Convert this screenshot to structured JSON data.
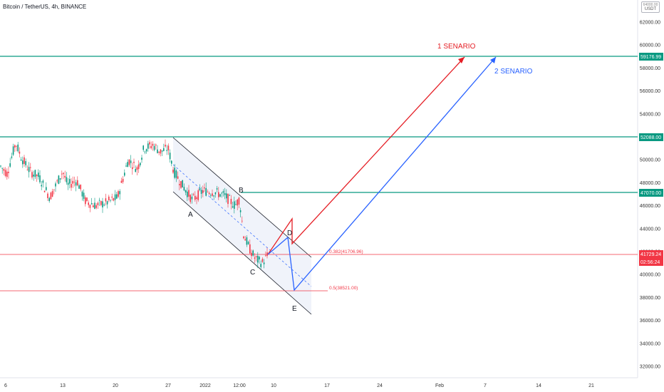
{
  "header": {
    "title": "Bitcoin / TetherUS, 4h, BINANCE",
    "currency_badge": "USDT",
    "currency_top": "64000.00"
  },
  "chart_data": {
    "type": "candlestick",
    "title": "Bitcoin / TetherUS, 4h, BINANCE",
    "y_axis": {
      "ticks": [
        "62000.00",
        "60000.00",
        "58000.00",
        "56000.00",
        "54000.00",
        "52000.00",
        "50000.00",
        "48000.00",
        "46000.00",
        "44000.00",
        "42000.00",
        "40000.00",
        "38000.00",
        "36000.00",
        "34000.00",
        "32000.00"
      ],
      "range": [
        30500,
        64500
      ]
    },
    "x_axis": {
      "ticks": [
        "6",
        "13",
        "20",
        "27",
        "2022",
        "12:00",
        "10",
        "17",
        "24",
        "Feb",
        "7",
        "14",
        "21"
      ]
    },
    "price_labels": [
      {
        "value": "59176.99",
        "kind": "level"
      },
      {
        "value": "52088.00",
        "kind": "level"
      },
      {
        "value": "47070.00",
        "kind": "level"
      },
      {
        "value": "41729.24",
        "kind": "current"
      },
      {
        "value": "02:56:24",
        "kind": "countdown"
      }
    ],
    "horizontal_levels": [
      {
        "price": 59176.99,
        "color": "#089981"
      },
      {
        "price": 52088.0,
        "color": "#089981"
      },
      {
        "price": 47070.0,
        "color": "#089981"
      }
    ],
    "fib_levels": [
      {
        "label": "0.382(41706.96)",
        "price": 41706.96
      },
      {
        "label": "0.5(38521.00)",
        "price": 38521.0
      }
    ],
    "wave_labels": [
      "A",
      "B",
      "C",
      "D",
      "E"
    ],
    "scenarios": [
      {
        "label": "1 SENARIO",
        "color": "#e51e25"
      },
      {
        "label": "2 SENARIO",
        "color": "#2962ff"
      }
    ],
    "colors": {
      "up": "#089981",
      "down": "#f23645",
      "level": "#089981",
      "red_line": "#f23645"
    }
  }
}
